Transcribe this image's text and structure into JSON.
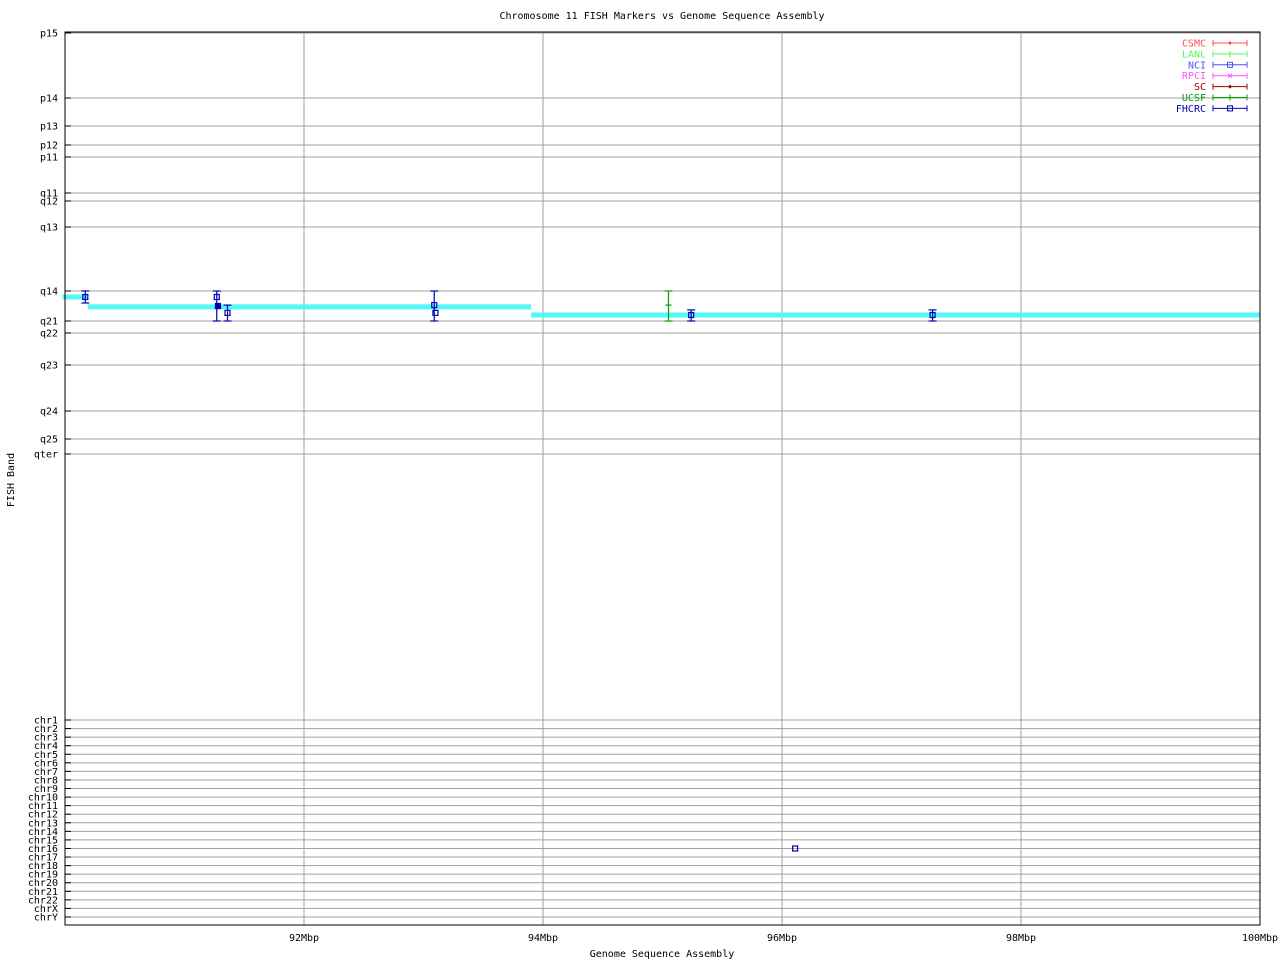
{
  "chart_data": {
    "type": "scatter",
    "title": "Chromosome 11 FISH Markers vs Genome Sequence Assembly",
    "xlabel": "Genome Sequence Assembly",
    "ylabel": "FISH Band",
    "xlim": [
      90,
      100
    ],
    "x_ticks": [
      {
        "value": 92,
        "label": "92Mbp"
      },
      {
        "value": 94,
        "label": "94Mbp"
      },
      {
        "value": 96,
        "label": "96Mbp"
      },
      {
        "value": 98,
        "label": "98Mbp"
      },
      {
        "value": 100,
        "label": "100Mbp"
      }
    ],
    "band_ticks": [
      "p15",
      "p14",
      "p13",
      "p12",
      "p11",
      "q11",
      "q12",
      "q13",
      "q14",
      "q21",
      "q22",
      "q23",
      "q24",
      "q25",
      "qter"
    ],
    "chr_ticks": [
      "chr1",
      "chr2",
      "chr3",
      "chr4",
      "chr5",
      "chr6",
      "chr7",
      "chr8",
      "chr9",
      "chr10",
      "chr11",
      "chr12",
      "chr13",
      "chr14",
      "chr15",
      "chr16",
      "chr17",
      "chr18",
      "chr19",
      "chr20",
      "chr21",
      "chr22",
      "chrX",
      "chrY"
    ],
    "grid": true,
    "legend_position": "top-right",
    "legend": [
      {
        "name": "CSMC",
        "color": "#ff5050",
        "marker": "diamond"
      },
      {
        "name": "LANL",
        "color": "#60f060",
        "marker": "plus"
      },
      {
        "name": "NCI",
        "color": "#5050ff",
        "marker": "square"
      },
      {
        "name": "RPCI",
        "color": "#ff50ff",
        "marker": "cross"
      },
      {
        "name": "SC",
        "color": "#a00000",
        "marker": "diamond"
      },
      {
        "name": "UCSF",
        "color": "#00a000",
        "marker": "plus"
      },
      {
        "name": "FHCRC",
        "color": "#0000b0",
        "marker": "square"
      }
    ],
    "assembly_color": "#50f8f8",
    "assembly_segments": [
      {
        "x0": 89.98,
        "x1": 90.19,
        "band": "q14",
        "pos": 0.2
      },
      {
        "x0": 90.19,
        "x1": 93.9,
        "band": "q14",
        "pos": 0.53
      },
      {
        "x0": 93.9,
        "x1": 100,
        "band": "q14",
        "pos": 0.8
      }
    ],
    "markers": [
      {
        "lab": "FHCRC",
        "x": 90.17,
        "band": "q14",
        "pos": 0.2,
        "err": [
          0,
          0.4
        ]
      },
      {
        "lab": "FHCRC",
        "x": 91.27,
        "band": "q14",
        "pos": 0.2,
        "err": [
          0,
          1
        ]
      },
      {
        "lab": "FHCRC",
        "x": 91.28,
        "band": "q14",
        "pos": 0.5,
        "err": null,
        "filled": true
      },
      {
        "lab": "FHCRC",
        "x": 91.36,
        "band": "q14",
        "pos": 0.73,
        "err": [
          0.47,
          1
        ]
      },
      {
        "lab": "FHCRC",
        "x": 93.09,
        "band": "q14",
        "pos": 0.47,
        "err": [
          0,
          1
        ]
      },
      {
        "lab": "FHCRC",
        "x": 93.1,
        "band": "q14",
        "pos": 0.73,
        "err": null
      },
      {
        "lab": "UCSF",
        "x": 95.05,
        "band": "q14",
        "pos": 0.47,
        "err": [
          0,
          1
        ]
      },
      {
        "lab": "FHCRC",
        "x": 95.24,
        "band": "q14",
        "pos": 0.8,
        "err": [
          0.63,
          1
        ]
      },
      {
        "lab": "FHCRC",
        "x": 97.26,
        "band": "q14",
        "pos": 0.8,
        "err": [
          0.63,
          1
        ]
      },
      {
        "lab": "FHCRC",
        "x": 96.11,
        "chr": "chr16",
        "err": null
      }
    ]
  }
}
